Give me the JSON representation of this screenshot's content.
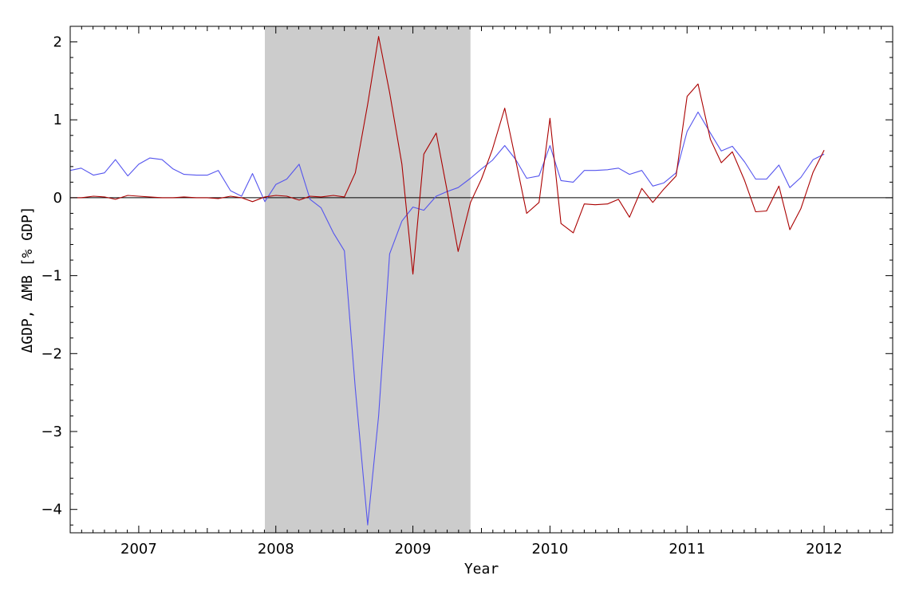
{
  "chart_data": {
    "type": "line",
    "xlabel": "Year",
    "ylabel": "ΔGDP, ΔMB [% GDP]",
    "xlim": [
      2006.5,
      2012.5
    ],
    "ylim": [
      -4.3,
      2.2
    ],
    "x_ticks": [
      2007,
      2008,
      2009,
      2010,
      2011,
      2012
    ],
    "x_tick_labels": [
      "2007",
      "2008",
      "2009",
      "2010",
      "2011",
      "2012"
    ],
    "y_ticks": [
      -4,
      -3,
      -2,
      -1,
      0,
      1,
      2
    ],
    "y_tick_labels": [
      "−4",
      "−3",
      "−2",
      "−1",
      "0",
      "1",
      "2"
    ],
    "grid": false,
    "legend": "none",
    "shaded_region": {
      "x": [
        2007.92,
        2009.42
      ],
      "color": "#cccccc"
    },
    "zero_line": true,
    "series": [
      {
        "color": "#5555ee",
        "points": [
          [
            2006.5,
            0.35
          ],
          [
            2006.58,
            0.38
          ],
          [
            2006.67,
            0.29
          ],
          [
            2006.75,
            0.32
          ],
          [
            2006.83,
            0.49
          ],
          [
            2006.92,
            0.28
          ],
          [
            2007.0,
            0.43
          ],
          [
            2007.08,
            0.51
          ],
          [
            2007.17,
            0.49
          ],
          [
            2007.25,
            0.37
          ],
          [
            2007.33,
            0.3
          ],
          [
            2007.42,
            0.29
          ],
          [
            2007.5,
            0.29
          ],
          [
            2007.58,
            0.35
          ],
          [
            2007.67,
            0.09
          ],
          [
            2007.75,
            0.02
          ],
          [
            2007.83,
            0.31
          ],
          [
            2007.92,
            -0.05
          ],
          [
            2008.0,
            0.17
          ],
          [
            2008.08,
            0.24
          ],
          [
            2008.17,
            0.43
          ],
          [
            2008.25,
            -0.02
          ],
          [
            2008.33,
            -0.13
          ],
          [
            2008.42,
            -0.45
          ],
          [
            2008.5,
            -0.68
          ],
          [
            2008.58,
            -2.45
          ],
          [
            2008.67,
            -4.2
          ],
          [
            2008.75,
            -2.8
          ],
          [
            2008.83,
            -0.72
          ],
          [
            2008.92,
            -0.3
          ],
          [
            2009.0,
            -0.12
          ],
          [
            2009.08,
            -0.16
          ],
          [
            2009.17,
            0.02
          ],
          [
            2009.25,
            0.08
          ],
          [
            2009.33,
            0.13
          ],
          [
            2009.42,
            0.25
          ],
          [
            2009.5,
            0.37
          ],
          [
            2009.58,
            0.48
          ],
          [
            2009.67,
            0.67
          ],
          [
            2009.75,
            0.49
          ],
          [
            2009.83,
            0.25
          ],
          [
            2009.92,
            0.28
          ],
          [
            2010.0,
            0.67
          ],
          [
            2010.08,
            0.22
          ],
          [
            2010.17,
            0.2
          ],
          [
            2010.25,
            0.35
          ],
          [
            2010.33,
            0.35
          ],
          [
            2010.42,
            0.36
          ],
          [
            2010.5,
            0.38
          ],
          [
            2010.58,
            0.3
          ],
          [
            2010.67,
            0.35
          ],
          [
            2010.75,
            0.15
          ],
          [
            2010.83,
            0.19
          ],
          [
            2010.92,
            0.32
          ],
          [
            2011.0,
            0.85
          ],
          [
            2011.08,
            1.1
          ],
          [
            2011.17,
            0.83
          ],
          [
            2011.25,
            0.6
          ],
          [
            2011.33,
            0.66
          ],
          [
            2011.42,
            0.46
          ],
          [
            2011.5,
            0.24
          ],
          [
            2011.58,
            0.24
          ],
          [
            2011.67,
            0.42
          ],
          [
            2011.75,
            0.13
          ],
          [
            2011.83,
            0.26
          ],
          [
            2011.92,
            0.49
          ],
          [
            2012.0,
            0.56
          ]
        ]
      },
      {
        "color": "#aa0000",
        "points": [
          [
            2006.5,
            0.0
          ],
          [
            2006.58,
            0.0
          ],
          [
            2006.67,
            0.02
          ],
          [
            2006.75,
            0.01
          ],
          [
            2006.83,
            -0.02
          ],
          [
            2006.92,
            0.03
          ],
          [
            2007.0,
            0.02
          ],
          [
            2007.08,
            0.01
          ],
          [
            2007.17,
            0.0
          ],
          [
            2007.25,
            0.0
          ],
          [
            2007.33,
            0.01
          ],
          [
            2007.42,
            0.0
          ],
          [
            2007.5,
            0.0
          ],
          [
            2007.58,
            -0.01
          ],
          [
            2007.67,
            0.02
          ],
          [
            2007.75,
            0.0
          ],
          [
            2007.83,
            -0.05
          ],
          [
            2007.92,
            0.01
          ],
          [
            2008.0,
            0.03
          ],
          [
            2008.08,
            0.02
          ],
          [
            2008.17,
            -0.03
          ],
          [
            2008.25,
            0.02
          ],
          [
            2008.33,
            0.01
          ],
          [
            2008.42,
            0.03
          ],
          [
            2008.5,
            0.01
          ],
          [
            2008.58,
            0.32
          ],
          [
            2008.67,
            1.2
          ],
          [
            2008.75,
            2.07
          ],
          [
            2008.83,
            1.35
          ],
          [
            2008.92,
            0.43
          ],
          [
            2009.0,
            -0.98
          ],
          [
            2009.08,
            0.56
          ],
          [
            2009.17,
            0.83
          ],
          [
            2009.25,
            0.09
          ],
          [
            2009.33,
            -0.69
          ],
          [
            2009.42,
            -0.06
          ],
          [
            2009.5,
            0.24
          ],
          [
            2009.58,
            0.62
          ],
          [
            2009.67,
            1.15
          ],
          [
            2009.75,
            0.48
          ],
          [
            2009.83,
            -0.2
          ],
          [
            2009.92,
            -0.06
          ],
          [
            2010.0,
            1.02
          ],
          [
            2010.08,
            -0.33
          ],
          [
            2010.17,
            -0.45
          ],
          [
            2010.25,
            -0.08
          ],
          [
            2010.33,
            -0.09
          ],
          [
            2010.42,
            -0.08
          ],
          [
            2010.5,
            -0.02
          ],
          [
            2010.58,
            -0.25
          ],
          [
            2010.67,
            0.12
          ],
          [
            2010.75,
            -0.06
          ],
          [
            2010.83,
            0.11
          ],
          [
            2010.92,
            0.28
          ],
          [
            2011.0,
            1.3
          ],
          [
            2011.08,
            1.46
          ],
          [
            2011.17,
            0.75
          ],
          [
            2011.25,
            0.45
          ],
          [
            2011.33,
            0.59
          ],
          [
            2011.42,
            0.22
          ],
          [
            2011.5,
            -0.18
          ],
          [
            2011.58,
            -0.17
          ],
          [
            2011.67,
            0.15
          ],
          [
            2011.75,
            -0.41
          ],
          [
            2011.83,
            -0.14
          ],
          [
            2011.92,
            0.33
          ],
          [
            2012.0,
            0.61
          ]
        ]
      }
    ]
  }
}
